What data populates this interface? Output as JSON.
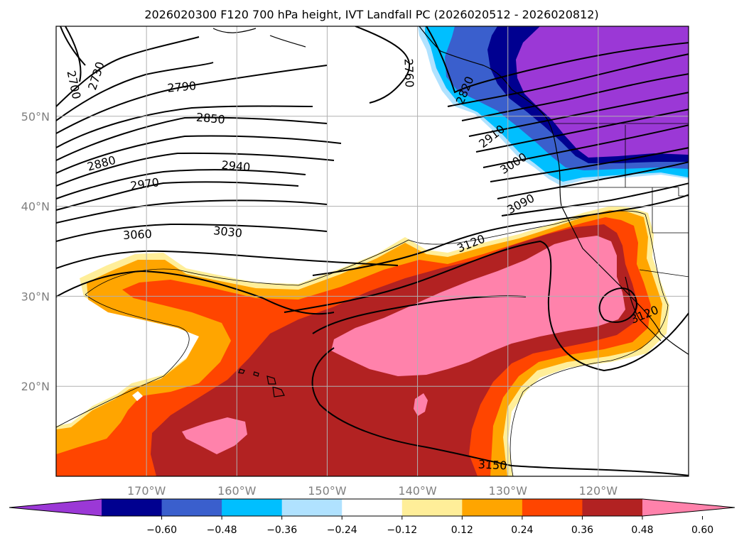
{
  "title": "2026020300 F120 700 hPa height, IVT Landfall PC (2026020512 - 2026020812)",
  "map": {
    "lon_range": [
      -180,
      -110
    ],
    "lat_range": [
      10,
      60
    ],
    "lon_ticks": [
      {
        "value": -170,
        "label": "170°W"
      },
      {
        "value": -160,
        "label": "160°W"
      },
      {
        "value": -150,
        "label": "150°W"
      },
      {
        "value": -140,
        "label": "140°W"
      },
      {
        "value": -130,
        "label": "130°W"
      },
      {
        "value": -120,
        "label": "120°W"
      }
    ],
    "lat_ticks": [
      {
        "value": 20,
        "label": "20°N"
      },
      {
        "value": 30,
        "label": "30°N"
      },
      {
        "value": 40,
        "label": "40°N"
      },
      {
        "value": 50,
        "label": "50°N"
      }
    ],
    "grid": true,
    "coastlines": true
  },
  "colorbar": {
    "orientation": "horizontal",
    "extend": "both",
    "levels": [
      "−0.60",
      "−0.48",
      "−0.36",
      "−0.24",
      "−0.12",
      "0.12",
      "0.24",
      "0.36",
      "0.48",
      "0.60"
    ],
    "colors": [
      "#9b38d6",
      "#000090",
      "#3a5fcd",
      "#00bfff",
      "#b0e2ff",
      "#ffffff",
      "#ffee99",
      "#ffa500",
      "#ff4500",
      "#b22222",
      "#ff82ab"
    ]
  },
  "contours": {
    "labels": [
      {
        "text": "2700",
        "lon": -178.0,
        "lat": 53.5,
        "angle": 78
      },
      {
        "text": "2730",
        "lon": -175.6,
        "lat": 54.5,
        "angle": -72
      },
      {
        "text": "2790",
        "lon": -166.1,
        "lat": 53.3,
        "angle": -5
      },
      {
        "text": "2850",
        "lon": -162.9,
        "lat": 49.8,
        "angle": 5
      },
      {
        "text": "2880",
        "lon": -175.0,
        "lat": 44.8,
        "angle": -15
      },
      {
        "text": "2940",
        "lon": -160.1,
        "lat": 44.5,
        "angle": 5
      },
      {
        "text": "2970",
        "lon": -170.2,
        "lat": 42.5,
        "angle": -8
      },
      {
        "text": "3060",
        "lon": -171.0,
        "lat": 36.9,
        "angle": -3
      },
      {
        "text": "3030",
        "lon": -161.0,
        "lat": 37.2,
        "angle": 6
      },
      {
        "text": "2760",
        "lon": -140.9,
        "lat": 54.8,
        "angle": 88
      },
      {
        "text": "2820",
        "lon": -134.8,
        "lat": 52.9,
        "angle": -68
      },
      {
        "text": "2910",
        "lon": -131.8,
        "lat": 47.8,
        "angle": -38
      },
      {
        "text": "3000",
        "lon": -129.4,
        "lat": 44.8,
        "angle": -32
      },
      {
        "text": "3090",
        "lon": -128.6,
        "lat": 40.3,
        "angle": -28
      },
      {
        "text": "3120",
        "lon": -134.1,
        "lat": 35.9,
        "angle": -22
      },
      {
        "text": "3120",
        "lon": -114.9,
        "lat": 28.0,
        "angle": -22
      },
      {
        "text": "3150",
        "lon": -131.7,
        "lat": 11.3,
        "angle": 3
      }
    ]
  }
}
